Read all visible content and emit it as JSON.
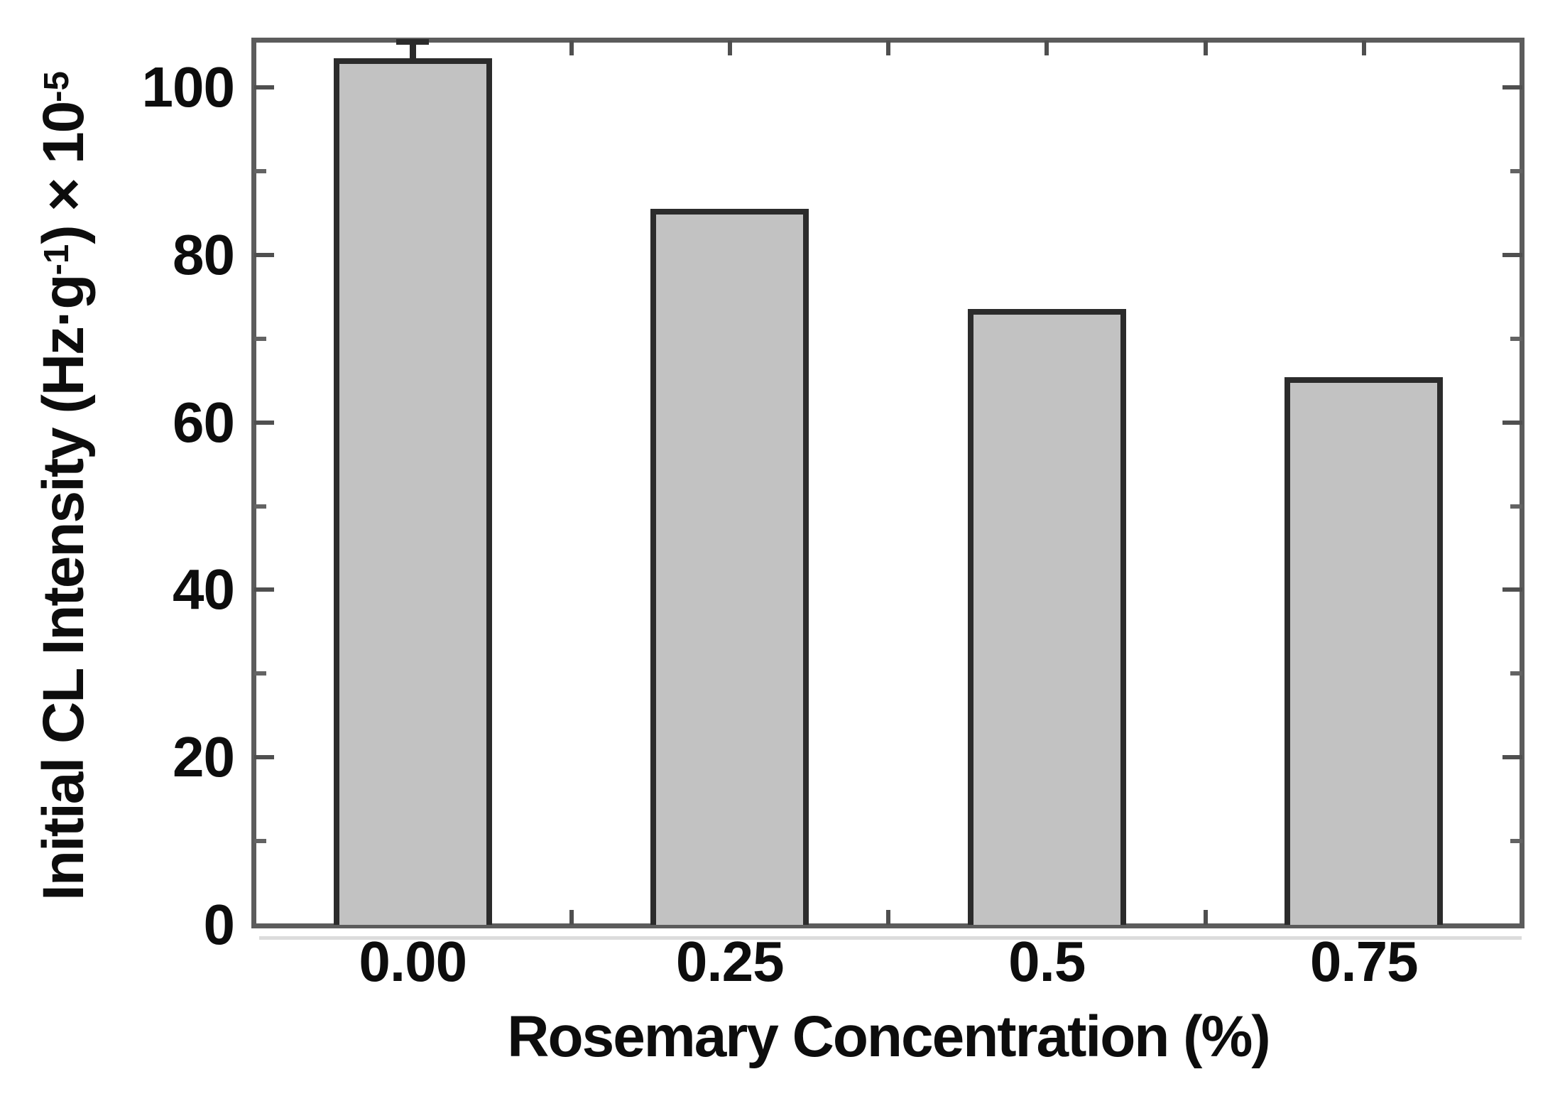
{
  "figure": {
    "background": "#ffffff",
    "kind": "scientific bar chart"
  },
  "chart_data": {
    "type": "bar",
    "title": "",
    "categories": [
      "0.00",
      "0.25",
      "0.5",
      "0.75"
    ],
    "values": [
      103.5,
      85.5,
      73.5,
      65.4
    ],
    "error_plus": [
      2.0,
      0,
      0,
      0
    ],
    "xlabel": "Rosemary Concentration (%)",
    "ylabel": "Initial CL Intensity (Hz·g⁻¹) × 10⁻⁵",
    "ylabel_parts": [
      {
        "text": "Initial CL Intensity (Hz·g",
        "sup": false
      },
      {
        "text": "-1",
        "sup": true
      },
      {
        "text": ") × 10",
        "sup": false
      },
      {
        "text": "-5",
        "sup": true
      }
    ],
    "ylim": [
      0,
      105.6
    ],
    "yticks_major": [
      0,
      20,
      40,
      60,
      80,
      100
    ],
    "ytick_labels": [
      "0",
      "20",
      "40",
      "60",
      "80",
      "100"
    ],
    "yticks_minor": [
      10,
      30,
      50,
      70,
      90
    ],
    "xtick_fractions_major": [
      0.125,
      0.375,
      0.625,
      0.875
    ],
    "xtick_fractions_minor": [
      0.25,
      0.5,
      0.75
    ],
    "bar_width_fraction": 0.5,
    "grid": false,
    "legend": null,
    "colors": {
      "bar_fill": "#c2c2c2",
      "bar_border": "#2b2b2b",
      "spine": "#5c5c5c",
      "tick_major": "#4f4f4f",
      "tick_minor": "#636363",
      "text": "#0d0d0d"
    }
  }
}
